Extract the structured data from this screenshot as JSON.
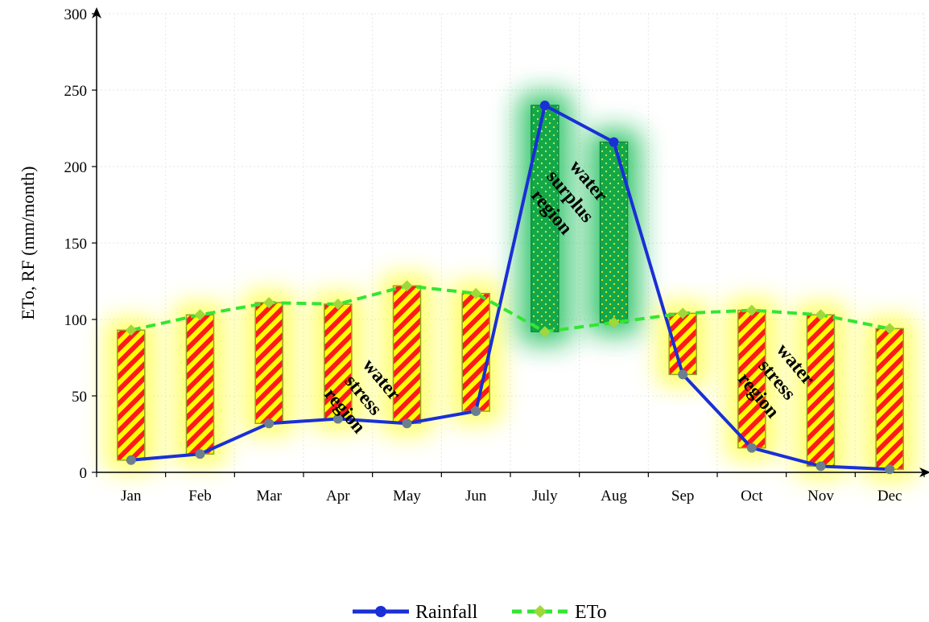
{
  "chart_data": {
    "type": "line",
    "categories": [
      "Jan",
      "Feb",
      "Mar",
      "Apr",
      "May",
      "Jun",
      "July",
      "Aug",
      "Sep",
      "Oct",
      "Nov",
      "Dec"
    ],
    "series": [
      {
        "name": "Rainfall",
        "values": [
          8,
          12,
          32,
          35,
          32,
          40,
          240,
          216,
          64,
          16,
          4,
          2
        ],
        "color": "#1a2fd6",
        "style": "solid",
        "marker": "circle"
      },
      {
        "name": "ETo",
        "values": [
          93,
          103,
          111,
          110,
          122,
          117,
          92,
          98,
          104,
          106,
          103,
          94
        ],
        "color": "#33e633",
        "style": "dashed",
        "marker": "diamond"
      }
    ],
    "ylabel": "ETo, RF (mm/month)",
    "xlabel": "",
    "ylim": [
      0,
      300
    ],
    "yticks": [
      0,
      50,
      100,
      150,
      200,
      250,
      300
    ],
    "grid": true,
    "legend_position": "bottom",
    "regions": [
      {
        "label_lines": [
          "water",
          "stress",
          "region"
        ],
        "type": "stress",
        "months": [
          "Jan",
          "Feb",
          "Mar",
          "Apr",
          "May",
          "Jun"
        ],
        "anchor_month": "Apr",
        "anchor_value": 48
      },
      {
        "label_lines": [
          "water",
          "surplus",
          "region"
        ],
        "type": "surplus",
        "months": [
          "July",
          "Aug"
        ],
        "anchor_month": "July",
        "anchor_value": 178
      },
      {
        "label_lines": [
          "water",
          "stress",
          "region"
        ],
        "type": "stress",
        "months": [
          "Sep",
          "Oct",
          "Nov",
          "Dec"
        ],
        "anchor_month": "Oct",
        "anchor_value": 58
      }
    ],
    "colors": {
      "stress_stripe_a": "#ffff00",
      "stress_stripe_b": "#ff1a1a",
      "surplus_fill": "#12a84a",
      "surplus_dot": "#e6e633"
    }
  }
}
